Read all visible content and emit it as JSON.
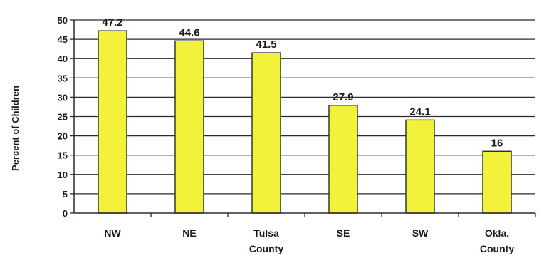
{
  "chart_data": {
    "type": "bar",
    "categories": [
      [
        "NW"
      ],
      [
        "NE"
      ],
      [
        "Tulsa",
        "County"
      ],
      [
        "SE"
      ],
      [
        "SW"
      ],
      [
        "Okla.",
        "County"
      ]
    ],
    "values": [
      47.2,
      44.6,
      41.5,
      27.9,
      24.1,
      16
    ],
    "data_labels": [
      "47.2",
      "44.6",
      "41.5",
      "27.9",
      "24.1",
      "16"
    ],
    "ylabel": "Percent of Children",
    "xlabel": "",
    "title": "",
    "ylim": [
      0,
      50
    ],
    "yticks": [
      0,
      5,
      10,
      15,
      20,
      25,
      30,
      35,
      40,
      45,
      50
    ],
    "grid": true,
    "legend": "none",
    "colors": {
      "bar_fill": "#f2f23a",
      "bar_stroke": "#2b2b2b",
      "grid": "#2b2b2b",
      "axis": "#2b2b2b"
    }
  }
}
